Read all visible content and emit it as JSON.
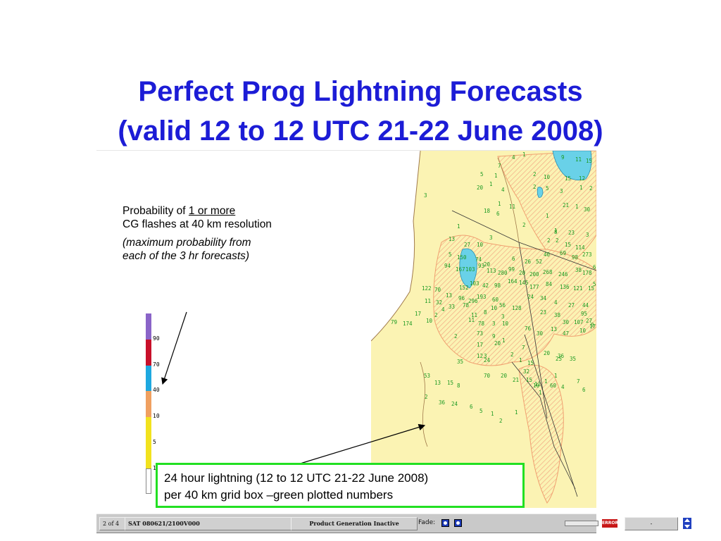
{
  "title": {
    "line1": "Perfect Prog Lightning Forecasts",
    "line2": "(valid 12 to 12 UTC 21-22 June 2008)"
  },
  "annotation": {
    "prefix": "Probability of ",
    "underlined": "1 or more",
    "rest": "CG flashes at 40 km resolution",
    "italic": "(maximum probability from each of the 3 hr forecasts)"
  },
  "legend": {
    "labels": [
      "90",
      "70",
      "40",
      "10",
      "5",
      "1"
    ],
    "colors": {
      "top": "#8a64c8",
      "red": "#c8102a",
      "blue": "#1ea8e0",
      "orange": "#f0a060",
      "yellow": "#f2e21e",
      "white": "#ffffff"
    }
  },
  "callout": {
    "line1": "24 hour lightning (12 to 12 UTC 21-22 June 2008)",
    "line2": "per 40 km grid box –green plotted numbers",
    "border_color": "#22e022"
  },
  "toolbar": {
    "frame": "2 of 4",
    "product": "SAT 080621/2100V000",
    "status": "Product Generation Inactive",
    "fade_label": "Fade:",
    "error_label": "ERROR",
    "dash": "-"
  },
  "map": {
    "colors": {
      "land": "#fbf3b3",
      "hatch": "#f3a883",
      "water": "#69d1e8",
      "numbers": "#1b9a22"
    },
    "numbers": [
      "4",
      "1",
      "9",
      "11",
      "15",
      "7",
      "2",
      "10",
      "15",
      "12",
      "5",
      "1",
      "20",
      "1",
      "4",
      "2",
      "5",
      "3",
      "1",
      "2",
      "1",
      "11",
      "21",
      "1",
      "30",
      "3",
      "1",
      "18",
      "6",
      "8",
      "2",
      "1",
      "1",
      "23",
      "3",
      "13",
      "27",
      "10",
      "3",
      "2",
      "2",
      "15",
      "114",
      "5",
      "150",
      "74",
      "20",
      "6",
      "26",
      "52",
      "40",
      "69",
      "98",
      "273",
      "6",
      "94",
      "167",
      "103",
      "93",
      "113",
      "280",
      "99",
      "20",
      "200",
      "268",
      "246",
      "38",
      "178",
      "53",
      "152",
      "103",
      "42",
      "98",
      "164",
      "145",
      "177",
      "84",
      "136",
      "121",
      "15",
      "122",
      "70",
      "13",
      "96",
      "296",
      "193",
      "60",
      "56",
      "128",
      "24",
      "34",
      "4",
      "27",
      "44",
      "95",
      "11",
      "32",
      "33",
      "78",
      "11",
      "8",
      "10",
      "3",
      "23",
      "38",
      "30",
      "107",
      "27",
      "9",
      "79",
      "174",
      "17",
      "10",
      "2",
      "4",
      "11",
      "78",
      "3",
      "10",
      "76",
      "30",
      "13",
      "47",
      "10",
      "17",
      "73",
      "9",
      "1",
      "17",
      "20",
      "12",
      "24",
      "2",
      "1",
      "15",
      "36",
      "35",
      "20",
      "25",
      "7",
      "2",
      "3",
      "35",
      "53",
      "13",
      "15",
      "8",
      "70",
      "20",
      "21",
      "15",
      "12",
      "1",
      "1",
      "32",
      "10",
      "2",
      "36",
      "24",
      "6",
      "5",
      "1",
      "2",
      "1",
      "1",
      "60",
      "4",
      "7",
      "6"
    ]
  }
}
